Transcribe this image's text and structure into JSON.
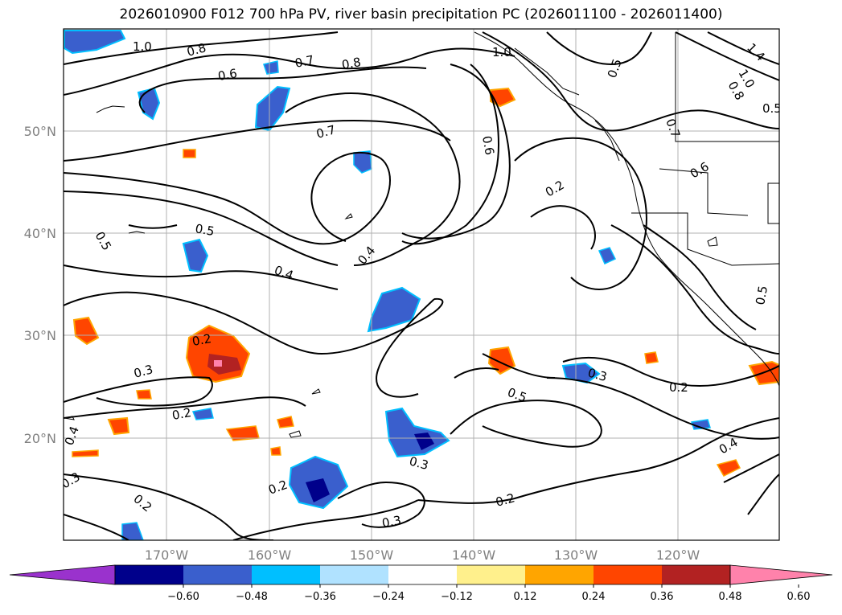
{
  "title": "2026010900 F012 700 hPa PV, river basin precipitation PC (2026011100 - 2026011400)",
  "lon_labels": [
    "170°W",
    "160°W",
    "150°W",
    "140°W",
    "130°W",
    "120°W"
  ],
  "lat_labels": [
    "50°N",
    "40°N",
    "30°N",
    "20°N"
  ],
  "contour_labels": [
    "1.0",
    "0.8",
    "0.6",
    "0.7",
    "0.8",
    "1.0",
    "0.5",
    "1.4",
    "1.0",
    "0.8",
    "0.5",
    "0.7",
    "0.6",
    "0.7",
    "0.6",
    "0.2",
    "0.5",
    "0.5",
    "0.4",
    "0.4",
    "0.2",
    "0.3",
    "0.3",
    "0.5",
    "0.2",
    "0.2",
    "0.4",
    "0.3",
    "0.2",
    "0.3",
    "0.2",
    "0.3",
    "0.2",
    "0.4",
    "0.5"
  ],
  "colorbar": {
    "ticks": [
      "−0.60",
      "−0.48",
      "−0.36",
      "−0.24",
      "−0.12",
      "0.12",
      "0.24",
      "0.36",
      "0.48",
      "0.60"
    ],
    "colors": [
      "#9a32cd",
      "#00008b",
      "#3a5fcd",
      "#00bfff",
      "#b0e2ff",
      "#ffffff",
      "#fff08c",
      "#ffa500",
      "#ff4500",
      "#b22222",
      "#ff82ab"
    ]
  }
}
